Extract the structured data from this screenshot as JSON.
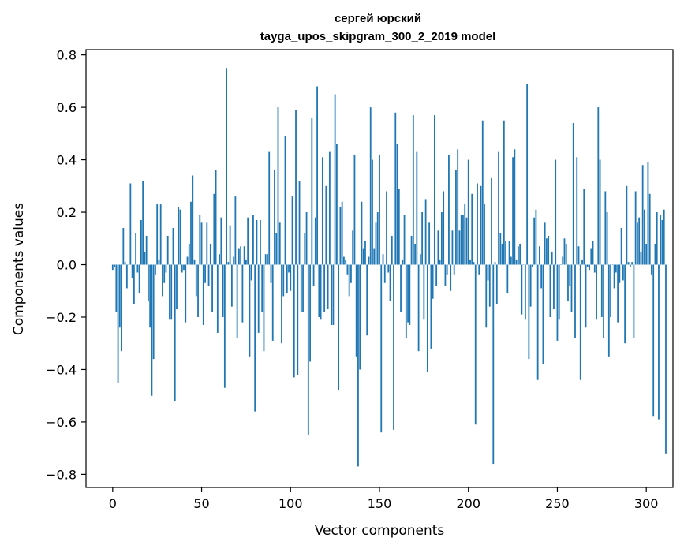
{
  "chart_data": {
    "type": "bar",
    "title_line1": "сергей юрский",
    "title_line2": "tayga_upos_skipgram_300_2_2019 model",
    "xlabel": "Vector components",
    "ylabel": "Components values",
    "xlim": [
      -15,
      315
    ],
    "ylim": [
      -0.85,
      0.82
    ],
    "xticks": [
      0,
      50,
      100,
      150,
      200,
      250,
      300
    ],
    "xtick_labels": [
      "0",
      "50",
      "100",
      "150",
      "200",
      "250",
      "300"
    ],
    "yticks": [
      -0.8,
      -0.6,
      -0.4,
      -0.2,
      0.0,
      0.2,
      0.4,
      0.6,
      0.8
    ],
    "ytick_labels": [
      "−0.8",
      "−0.6",
      "−0.4",
      "−0.2",
      "0.0",
      "0.2",
      "0.4",
      "0.6",
      "0.8"
    ],
    "bar_color": "#1f77b4",
    "grid": false,
    "values": [
      -0.02,
      -0.01,
      -0.18,
      -0.45,
      -0.24,
      -0.33,
      0.14,
      0.01,
      -0.09,
      0.0,
      0.31,
      -0.05,
      -0.15,
      0.12,
      -0.03,
      -0.11,
      0.17,
      0.32,
      0.05,
      0.11,
      -0.14,
      -0.24,
      -0.5,
      -0.36,
      -0.04,
      0.23,
      0.02,
      0.23,
      -0.12,
      -0.07,
      -0.03,
      0.11,
      -0.21,
      -0.21,
      0.14,
      -0.52,
      -0.17,
      0.22,
      0.21,
      -0.03,
      -0.02,
      -0.22,
      0.03,
      0.08,
      0.24,
      0.34,
      0.02,
      -0.12,
      -0.2,
      0.19,
      0.16,
      -0.23,
      -0.07,
      0.16,
      -0.08,
      0.08,
      -0.18,
      0.27,
      0.36,
      -0.26,
      0.04,
      0.18,
      -0.2,
      -0.47,
      0.75,
      0.01,
      0.15,
      -0.16,
      0.03,
      0.26,
      -0.28,
      0.06,
      0.07,
      -0.22,
      0.07,
      0.02,
      0.18,
      -0.35,
      -0.06,
      0.19,
      -0.56,
      0.17,
      -0.26,
      0.17,
      -0.18,
      -0.33,
      0.04,
      0.04,
      0.43,
      -0.07,
      -0.29,
      0.36,
      0.12,
      0.6,
      0.16,
      -0.3,
      -0.12,
      0.49,
      -0.11,
      -0.03,
      -0.1,
      0.26,
      -0.43,
      0.59,
      -0.42,
      0.32,
      -0.18,
      -0.18,
      0.12,
      0.2,
      -0.65,
      -0.37,
      0.56,
      -0.08,
      0.18,
      0.68,
      -0.2,
      -0.21,
      0.41,
      -0.18,
      0.3,
      -0.17,
      0.43,
      -0.23,
      -0.23,
      0.65,
      0.46,
      -0.48,
      0.22,
      0.24,
      0.03,
      0.02,
      -0.04,
      -0.12,
      -0.07,
      0.13,
      0.42,
      -0.35,
      -0.77,
      -0.4,
      0.24,
      0.06,
      0.09,
      -0.27,
      0.03,
      0.6,
      0.4,
      0.06,
      0.16,
      0.2,
      0.42,
      -0.64,
      0.04,
      -0.07,
      0.28,
      -0.03,
      -0.14,
      0.11,
      -0.63,
      0.58,
      0.46,
      0.29,
      -0.18,
      0.02,
      0.19,
      -0.28,
      -0.22,
      -0.23,
      0.11,
      0.57,
      0.08,
      0.43,
      -0.33,
      0.04,
      0.2,
      -0.21,
      0.25,
      -0.41,
      0.16,
      -0.32,
      -0.13,
      0.57,
      -0.08,
      0.13,
      0.02,
      0.2,
      0.28,
      -0.08,
      -0.04,
      0.42,
      -0.1,
      0.13,
      -0.04,
      0.36,
      0.44,
      0.13,
      0.19,
      0.19,
      0.23,
      0.18,
      0.4,
      0.02,
      0.27,
      0.01,
      -0.61,
      0.31,
      -0.04,
      0.3,
      0.55,
      0.23,
      -0.24,
      -0.06,
      -0.16,
      0.33,
      -0.76,
      0.01,
      -0.15,
      0.43,
      0.12,
      0.08,
      0.55,
      0.09,
      -0.11,
      0.09,
      0.03,
      0.41,
      0.44,
      0.02,
      0.07,
      0.08,
      -0.19,
      0.0,
      -0.21,
      0.69,
      -0.36,
      -0.16,
      -0.01,
      0.18,
      0.21,
      -0.44,
      0.07,
      -0.09,
      -0.38,
      0.16,
      0.1,
      0.11,
      -0.2,
      0.05,
      -0.17,
      0.4,
      -0.29,
      -0.21,
      0.0,
      0.03,
      0.1,
      0.08,
      -0.14,
      -0.08,
      -0.18,
      0.54,
      -0.28,
      0.41,
      0.07,
      -0.44,
      0.02,
      0.29,
      -0.24,
      -0.01,
      -0.02,
      0.06,
      0.09,
      -0.03,
      -0.21,
      0.6,
      0.4,
      -0.2,
      -0.28,
      0.28,
      0.2,
      -0.35,
      -0.2,
      0.0,
      -0.09,
      -0.03,
      -0.22,
      -0.07,
      0.14,
      -0.06,
      -0.3,
      0.3,
      0.01,
      -0.01,
      0.01,
      -0.28,
      0.28,
      0.16,
      0.18,
      0.05,
      0.38,
      0.21,
      0.08,
      0.39,
      0.27,
      -0.04,
      -0.58,
      0.08,
      0.2,
      -0.59,
      0.19,
      0.17,
      0.21,
      -0.72
    ]
  }
}
